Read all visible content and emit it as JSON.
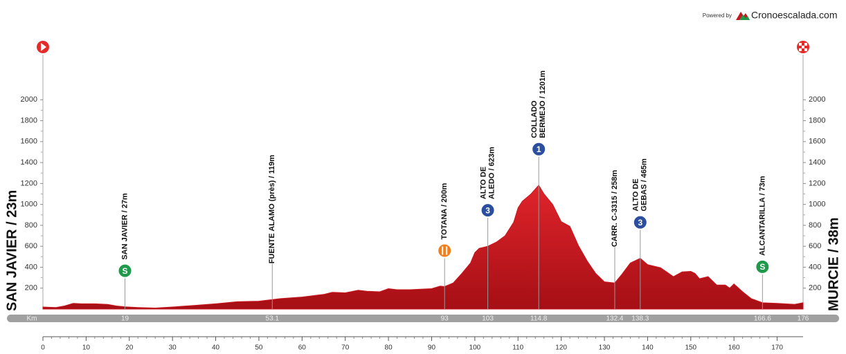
{
  "chart_data": {
    "type": "area",
    "powered_by": "Powered by",
    "brand": "Cronoescalada.com",
    "start_label": "SAN JAVIER / 23m",
    "finish_label": "MURCIE / 38m",
    "km_label": "Km",
    "color": "#c8161d",
    "x": [
      0,
      3,
      5,
      7,
      9,
      12,
      15,
      17,
      19,
      22,
      26,
      30,
      35,
      40,
      45,
      50,
      53,
      55,
      60,
      65,
      67,
      70,
      73,
      75,
      78,
      80,
      82,
      85,
      90,
      92,
      93,
      95,
      97,
      99,
      100,
      101,
      103,
      105,
      107,
      109,
      110,
      111,
      113,
      114.8,
      116,
      118,
      120,
      122,
      124,
      126,
      128,
      130,
      132.4,
      134,
      136,
      138.3,
      140,
      143,
      146,
      148,
      150,
      151,
      152,
      154,
      156,
      158,
      159,
      160,
      162,
      164,
      166.6,
      170,
      174,
      176
    ],
    "values": [
      20,
      15,
      30,
      55,
      50,
      50,
      45,
      30,
      22,
      15,
      10,
      20,
      35,
      50,
      70,
      75,
      90,
      100,
      115,
      140,
      160,
      155,
      180,
      170,
      165,
      195,
      185,
      185,
      195,
      220,
      215,
      250,
      340,
      440,
      540,
      580,
      600,
      640,
      700,
      830,
      967,
      1030,
      1100,
      1184,
      1100,
      1000,
      835,
      790,
      605,
      460,
      340,
      260,
      250,
      330,
      440,
      485,
      425,
      395,
      310,
      355,
      360,
      340,
      290,
      310,
      230,
      230,
      200,
      240,
      165,
      100,
      60,
      55,
      45,
      60
    ],
    "xlim": [
      0,
      176
    ],
    "ylim": [
      0,
      2200
    ],
    "xticks": [
      0,
      10,
      20,
      30,
      40,
      50,
      60,
      70,
      80,
      90,
      100,
      110,
      120,
      130,
      140,
      150,
      160,
      170
    ],
    "yticks": [
      200,
      400,
      600,
      800,
      1000,
      1200,
      1400,
      1600,
      1800,
      2000
    ],
    "waypoints": [
      {
        "km": 19,
        "label_lines": [
          "SAN JAVIER / 27m"
        ],
        "icon": "S",
        "icon_color": "#1e9a4a"
      },
      {
        "km": 53.1,
        "label_lines": [
          "FUENTE ALAMO (près) / 119m"
        ]
      },
      {
        "km": 93,
        "label_lines": [
          "TOTANA / 200m"
        ],
        "icon_color": "#f07f1e"
      },
      {
        "km": 103,
        "label_lines": [
          "ALTO DE",
          "ALEDO / 623m"
        ],
        "icon": "3",
        "icon_color": "#2b4f9e"
      },
      {
        "km": 114.8,
        "label_lines": [
          "COLLADO",
          "BERMEJO / 1201m"
        ],
        "icon": "1",
        "icon_color": "#2b4f9e"
      },
      {
        "km": 132.4,
        "label_lines": [
          "CARR. C-3315 / 258m"
        ]
      },
      {
        "km": 138.3,
        "label_lines": [
          "ALTO DE",
          "GEBAS / 465m"
        ],
        "icon": "3",
        "icon_color": "#2b4f9e"
      },
      {
        "km": 166.6,
        "label_lines": [
          "ALCANTARILLA / 73m"
        ],
        "icon": "S",
        "icon_color": "#1e9a4a"
      }
    ]
  }
}
